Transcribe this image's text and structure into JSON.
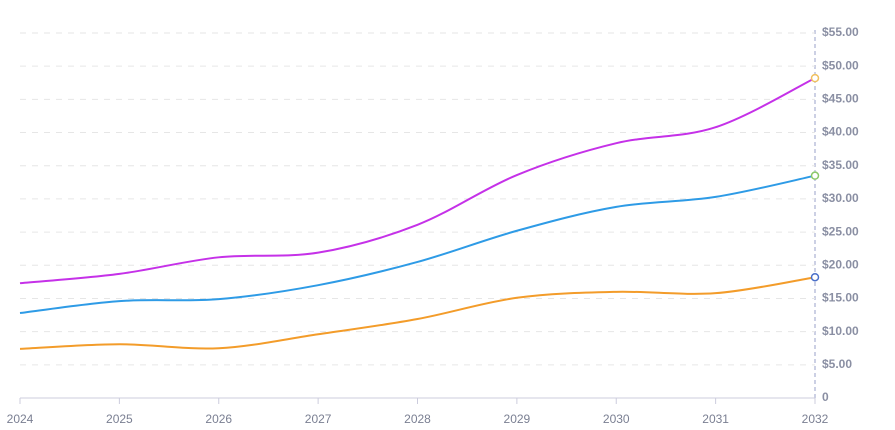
{
  "chart_data": {
    "type": "line",
    "x": [
      2024,
      2025,
      2026,
      2027,
      2028,
      2029,
      2030,
      2031,
      2032
    ],
    "xlim": [
      2024,
      2032
    ],
    "xticks": [
      2024,
      2025,
      2026,
      2027,
      2028,
      2029,
      2030,
      2031,
      2032
    ],
    "ylim": [
      0,
      55
    ],
    "yticks": [
      0,
      {
        "value": 5,
        "label": "$5.00"
      },
      {
        "value": 10,
        "label": "$10.00"
      },
      {
        "value": 15,
        "label": "$15.00"
      },
      {
        "value": 20,
        "label": "$20.00"
      },
      {
        "value": 25,
        "label": "$25.00"
      },
      {
        "value": 30,
        "label": "$30.00"
      },
      {
        "value": 35,
        "label": "$35.00"
      },
      {
        "value": 40,
        "label": "$40.00"
      },
      {
        "value": 45,
        "label": "$45.00"
      },
      {
        "value": 50,
        "label": "$50.00"
      },
      {
        "value": 55,
        "label": "$55.00"
      }
    ],
    "grid": true,
    "series": [
      {
        "color": "#c531e8",
        "marker_color": "#f0c060",
        "values": [
          17.3,
          18.7,
          21.2,
          21.9,
          26.1,
          33.6,
          38.4,
          40.8,
          48.2
        ]
      },
      {
        "color": "#2e9be6",
        "marker_color": "#8bc86a",
        "values": [
          12.8,
          14.6,
          14.9,
          17.0,
          20.5,
          25.2,
          28.8,
          30.3,
          33.5
        ]
      },
      {
        "color": "#f39c2a",
        "marker_color": "#4a6fc8",
        "values": [
          7.4,
          8.1,
          7.5,
          9.6,
          11.9,
          15.1,
          16.0,
          15.8,
          18.2
        ]
      }
    ]
  }
}
